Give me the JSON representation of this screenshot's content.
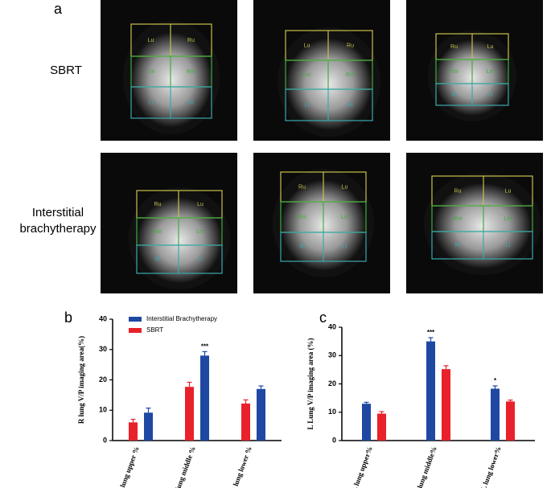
{
  "panels": {
    "a": "a",
    "b": "b",
    "c": "c"
  },
  "row_labels": [
    [
      "SBRT"
    ],
    [
      "Interstitial",
      "brachytherapy"
    ]
  ],
  "scans": [
    {
      "rows": [
        [
          "Lu",
          "Ru"
        ],
        [
          "Lm",
          "Rm"
        ],
        [
          "Ll",
          "Rl"
        ]
      ]
    },
    {
      "rows": [
        [
          "Lu",
          "Ru"
        ],
        [
          "Lm",
          "Rm"
        ],
        [
          "Ll",
          "Rl"
        ]
      ]
    },
    {
      "rows": [
        [
          "Ru",
          "Lu"
        ],
        [
          "Rm",
          "Lm"
        ],
        [
          "Rl",
          "Ll"
        ]
      ]
    },
    {
      "rows": [
        [
          "Ru",
          "Lu"
        ],
        [
          "Rm",
          "Lm"
        ],
        [
          "Rl",
          "Ll"
        ]
      ]
    },
    {
      "rows": [
        [
          "Ru",
          "Lu"
        ],
        [
          "Rm",
          "Lm"
        ],
        [
          "Rl",
          "Ll"
        ]
      ]
    },
    {
      "rows": [
        [
          "Ru",
          "Lu"
        ],
        [
          "Rm",
          "Lm"
        ],
        [
          "Rl",
          "Ll"
        ]
      ]
    }
  ],
  "chart_data": [
    {
      "type": "bar",
      "y_label": "R lung V/P imaging area(%)",
      "categories": [
        "R lung upper %",
        "R lung middle %",
        "R lung lower %"
      ],
      "legend_order": [
        1,
        0
      ],
      "series": [
        {
          "name": "SBRT",
          "color": "#e8212a",
          "values": [
            6,
            17.7,
            12.2
          ],
          "errors": [
            1,
            1.5,
            1.2
          ],
          "annotations": [
            null,
            null,
            null
          ]
        },
        {
          "name": "Interstitial Brachytherapy",
          "color": "#1f48a3",
          "values": [
            9.2,
            28,
            17
          ],
          "errors": [
            1.5,
            1.3,
            1
          ],
          "annotations": [
            null,
            "***",
            null
          ]
        }
      ],
      "ylim": [
        0,
        40
      ],
      "yticks": [
        0,
        10,
        20,
        30,
        40
      ]
    },
    {
      "type": "bar",
      "y_label": "L Lung V/P imaging area (%)",
      "categories": [
        "L lung upper%",
        "L lung middle%",
        "L lung lower%"
      ],
      "series": [
        {
          "color": "#1f48a3",
          "values": [
            13,
            35,
            18.3
          ],
          "errors": [
            0.5,
            1.3,
            1
          ],
          "annotations": [
            null,
            "***",
            "*"
          ]
        },
        {
          "color": "#e8212a",
          "values": [
            9.5,
            25.2,
            13.8
          ],
          "errors": [
            0.7,
            1.2,
            0.5
          ],
          "annotations": [
            null,
            null,
            null
          ]
        }
      ],
      "ylim": [
        0,
        40
      ],
      "yticks": [
        0,
        10,
        20,
        30,
        40
      ]
    }
  ]
}
